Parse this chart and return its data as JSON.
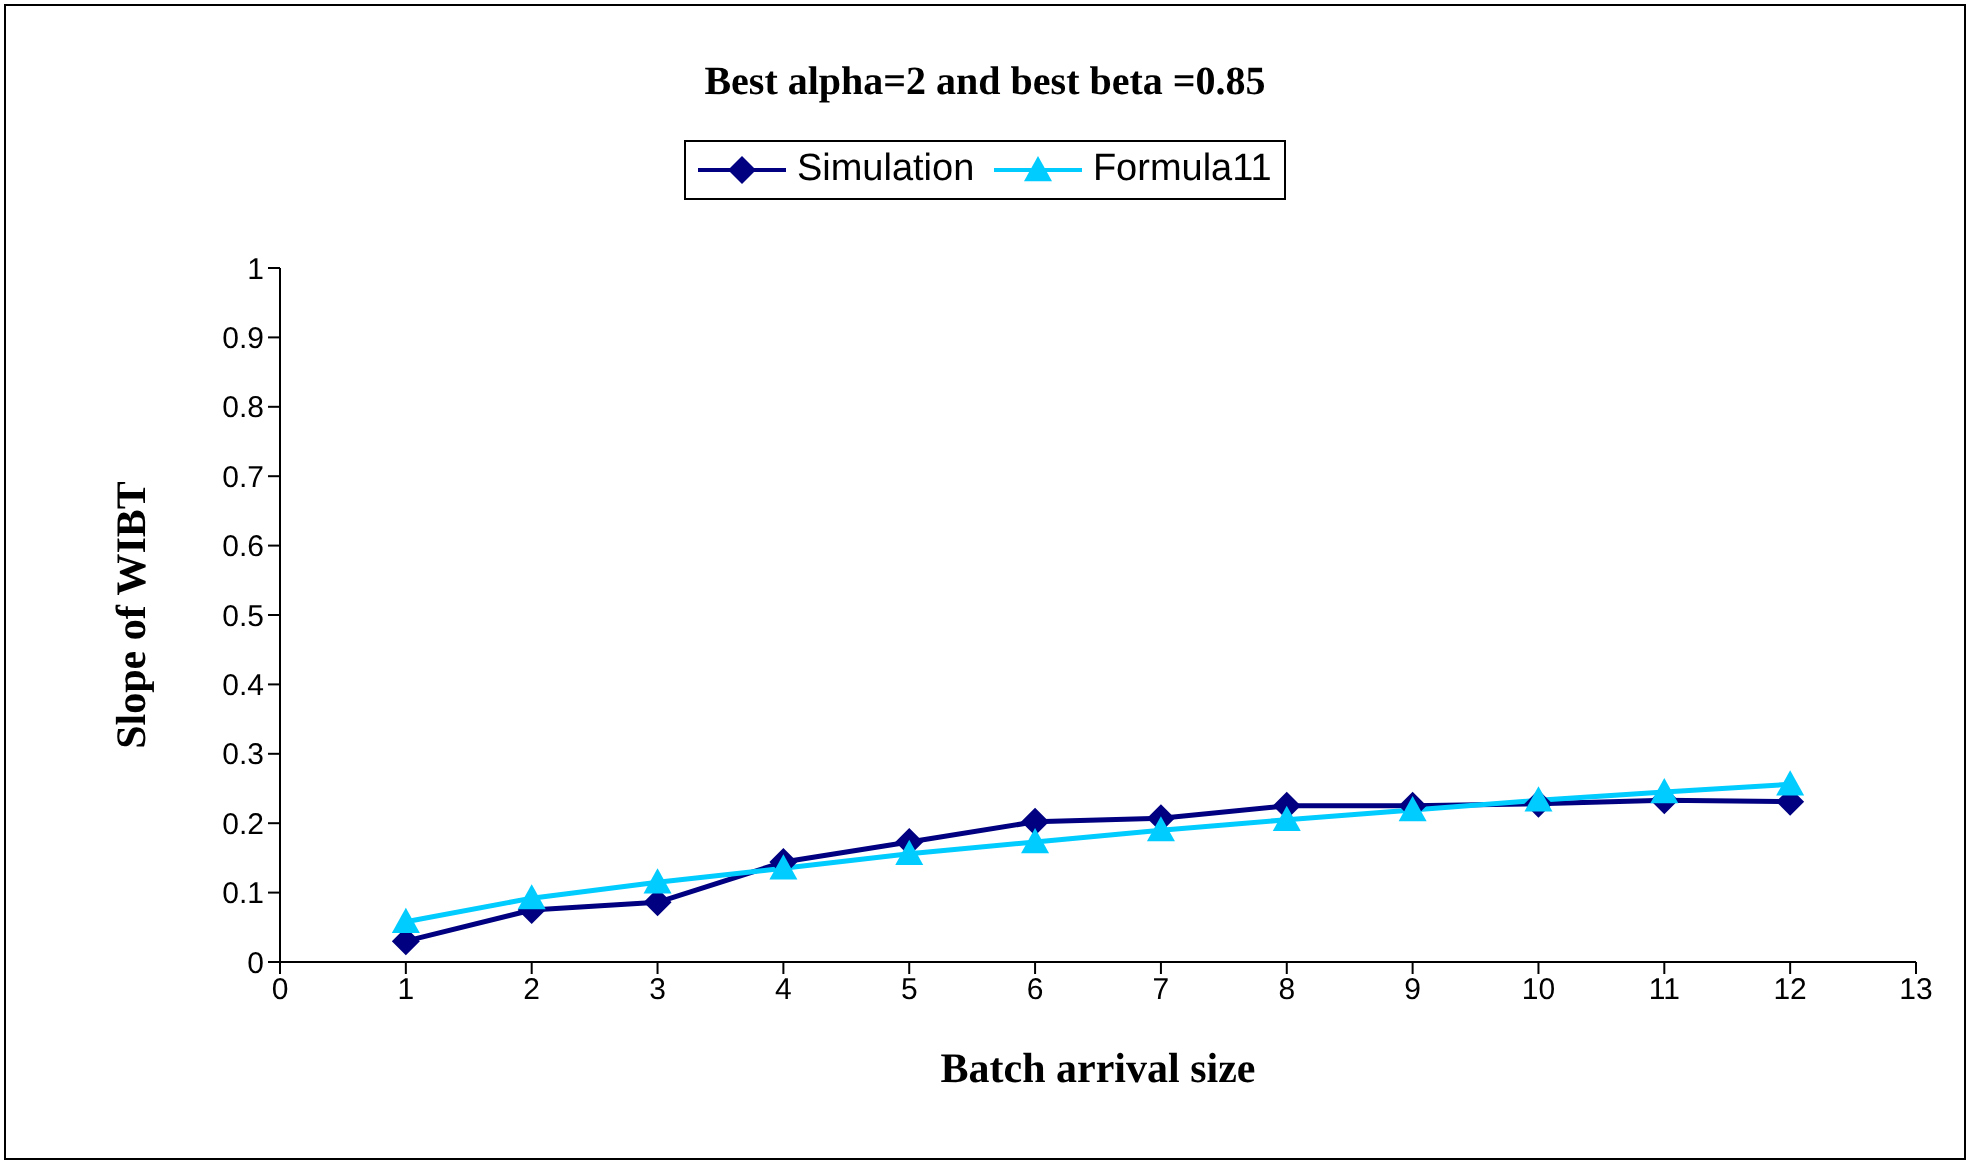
{
  "chart_data": {
    "type": "line",
    "title": "Best alpha=2 and best beta =0.85",
    "xlabel": "Batch arrival size",
    "ylabel": "Slope of WIBT",
    "x": [
      1,
      2,
      3,
      4,
      5,
      6,
      7,
      8,
      9,
      10,
      11,
      12
    ],
    "series": [
      {
        "name": "Simulation",
        "color": "#000080",
        "marker": "diamond",
        "values": [
          0.03,
          0.075,
          0.086,
          0.144,
          0.173,
          0.202,
          0.207,
          0.225,
          0.225,
          0.228,
          0.233,
          0.231
        ]
      },
      {
        "name": "Formula11",
        "color": "#00ccff",
        "marker": "triangle",
        "values": [
          0.058,
          0.092,
          0.115,
          0.135,
          0.156,
          0.173,
          0.19,
          0.205,
          0.219,
          0.233,
          0.245,
          0.256
        ]
      }
    ],
    "xlim": [
      0,
      13
    ],
    "xticks": [
      0,
      1,
      2,
      3,
      4,
      5,
      6,
      7,
      8,
      9,
      10,
      11,
      12,
      13
    ],
    "ylim": [
      0,
      1
    ],
    "yticks": [
      0,
      0.1,
      0.2,
      0.3,
      0.4,
      0.5,
      0.6,
      0.7,
      0.8,
      0.9,
      1
    ],
    "grid": false,
    "legend": "top",
    "line_style": "solid"
  }
}
